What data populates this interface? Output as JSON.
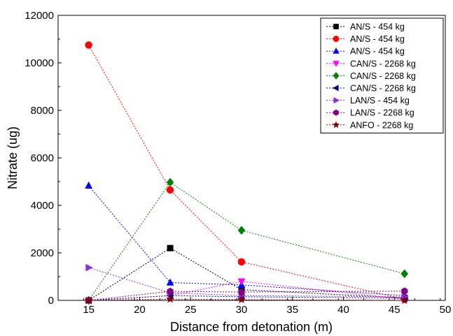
{
  "chart_data": {
    "type": "line",
    "title": "",
    "xlabel": "Distance from detonation (m)",
    "ylabel": "Nitrate (ug)",
    "xlim": [
      12,
      50
    ],
    "ylim": [
      0,
      12000
    ],
    "x_ticks": [
      15,
      20,
      25,
      30,
      35,
      40,
      45,
      50
    ],
    "y_ticks": [
      0,
      2000,
      4000,
      6000,
      8000,
      10000,
      12000
    ],
    "grid": false,
    "legend_position": "top-right",
    "series": [
      {
        "name": "AN/S -  454 kg",
        "color": "#000000",
        "marker": "square",
        "x": [
          15,
          23,
          30,
          46
        ],
        "y": [
          0,
          2200,
          450,
          100
        ]
      },
      {
        "name": "AN/S -  454 kg",
        "color": "#ff0000",
        "marker": "circle",
        "x": [
          15,
          23,
          30,
          46
        ],
        "y": [
          10750,
          4650,
          1620,
          50
        ]
      },
      {
        "name": "AN/S -  454 kg",
        "color": "#0000ff",
        "marker": "triangle-up",
        "x": [
          15,
          23,
          30,
          46
        ],
        "y": [
          4830,
          750,
          650,
          200
        ]
      },
      {
        "name": "CAN/S -  2268 kg",
        "color": "#ff00ff",
        "marker": "triangle-down",
        "x": [
          15,
          23,
          30,
          46
        ],
        "y": [
          0,
          200,
          800,
          50
        ]
      },
      {
        "name": "CAN/S -  2268 kg",
        "color": "#008000",
        "marker": "diamond",
        "x": [
          15,
          23,
          30,
          46
        ],
        "y": [
          0,
          4970,
          2950,
          1120
        ]
      },
      {
        "name": "CAN/S -  2268 kg",
        "color": "#000080",
        "marker": "triangle-left",
        "x": [
          15,
          23,
          30,
          46
        ],
        "y": [
          0,
          200,
          150,
          100
        ]
      },
      {
        "name": "LAN/S - 454 kg",
        "color": "#8a2be2",
        "marker": "triangle-right",
        "x": [
          15,
          23,
          30,
          46
        ],
        "y": [
          1380,
          320,
          200,
          150
        ]
      },
      {
        "name": "LAN/S -  2268 kg",
        "color": "#800080",
        "marker": "hexagon",
        "x": [
          15,
          23,
          30,
          46
        ],
        "y": [
          0,
          380,
          350,
          390
        ]
      },
      {
        "name": "ANFO -  2268 kg",
        "color": "#800000",
        "marker": "star",
        "x": [
          15,
          23,
          30,
          46
        ],
        "y": [
          0,
          50,
          30,
          0
        ]
      }
    ]
  }
}
